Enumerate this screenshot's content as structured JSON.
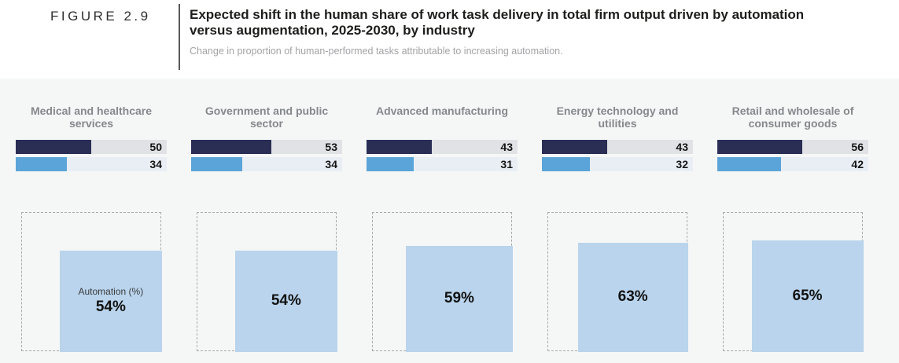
{
  "figure": {
    "label": "FIGURE 2.9",
    "title": "Expected shift in the human share of work task delivery in total firm output driven by automation versus augmentation, 2025-2030, by industry",
    "subtitle": "Change in proportion of human-performed tasks attributable to increasing automation."
  },
  "colors": {
    "navy_bar": "#2a2e55",
    "navy_bar_track": "#e0e2e5",
    "blue_bar": "#5ba4d9",
    "blue_bar_track": "#e9eef5",
    "automation_square": "#b9d4ec",
    "panel_background": "#f5f6f6",
    "column_label_text": "#85898c"
  },
  "chart_data": {
    "type": "bar",
    "title": "Expected shift in the human share of work task delivery in total firm output driven by automation versus augmentation, 2025-2030, by industry",
    "subtitle": "Change in proportion of human-performed tasks attributable to increasing automation.",
    "categories": [
      "Medical and healthcare services",
      "Government and public sector",
      "Advanced manufacturing",
      "Energy technology and utilities",
      "Retail and wholesale of consumer goods"
    ],
    "series": [
      {
        "name": "navy-bar",
        "color": "#2a2e55",
        "values": [
          50,
          53,
          43,
          43,
          56
        ]
      },
      {
        "name": "blue-bar",
        "color": "#5ba4d9",
        "values": [
          34,
          34,
          31,
          32,
          42
        ]
      }
    ],
    "axis_max": 100,
    "grid": false,
    "legend": "none visible",
    "automation_squares": {
      "label": "Automation (%)",
      "values": [
        54,
        54,
        59,
        63,
        65
      ],
      "display": [
        "54%",
        "54%",
        "59%",
        "63%",
        "65%"
      ],
      "encoding": "blue square area proportional to percentage of dashed 100% box, anchored bottom-right"
    }
  }
}
